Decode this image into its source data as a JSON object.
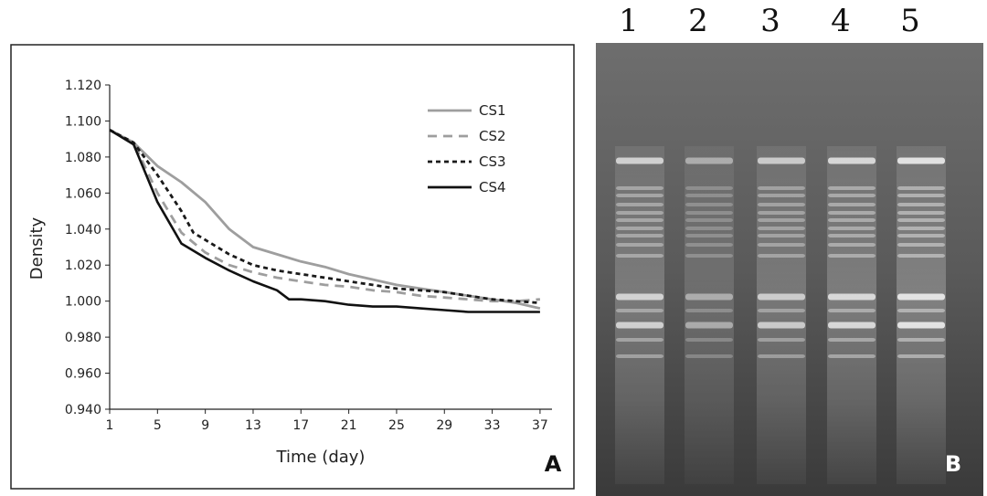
{
  "chart_data": {
    "type": "line",
    "xlabel": "Time (day)",
    "ylabel": "Density",
    "xlim": [
      1,
      38
    ],
    "ylim": [
      0.94,
      1.12
    ],
    "x_ticks": [
      "1",
      "5",
      "9",
      "13",
      "17",
      "21",
      "25",
      "29",
      "33",
      "37"
    ],
    "y_ticks": [
      "0.940",
      "0.960",
      "0.980",
      "1.000",
      "1.020",
      "1.040",
      "1.060",
      "1.080",
      "1.100",
      "1.120"
    ],
    "grid": false,
    "legend_position": "top-right",
    "series": [
      {
        "name": "CS1",
        "color": "#9e9e9e",
        "dash": "solid",
        "x": [
          1,
          3,
          5,
          7,
          9,
          11,
          13,
          15,
          17,
          19,
          21,
          23,
          25,
          27,
          29,
          31,
          33,
          35,
          37
        ],
        "y": [
          1.095,
          1.088,
          1.075,
          1.066,
          1.055,
          1.04,
          1.03,
          1.026,
          1.022,
          1.019,
          1.015,
          1.012,
          1.009,
          1.007,
          1.005,
          1.003,
          1.001,
          0.999,
          0.996
        ]
      },
      {
        "name": "CS2",
        "color": "#9e9e9e",
        "dash": "dashed",
        "x": [
          1,
          3,
          5,
          7,
          9,
          11,
          13,
          15,
          17,
          19,
          21,
          23,
          25,
          27,
          29,
          31,
          33,
          35,
          37
        ],
        "y": [
          1.095,
          1.088,
          1.06,
          1.038,
          1.027,
          1.02,
          1.016,
          1.013,
          1.011,
          1.009,
          1.008,
          1.006,
          1.005,
          1.003,
          1.002,
          1.001,
          1.0,
          1.0,
          1.001
        ]
      },
      {
        "name": "CS3",
        "color": "#1a1a1a",
        "dash": "dotted",
        "x": [
          1,
          3,
          5,
          7,
          8,
          9,
          11,
          13,
          15,
          17,
          19,
          21,
          23,
          25,
          27,
          29,
          31,
          33,
          35,
          37
        ],
        "y": [
          1.095,
          1.088,
          1.07,
          1.05,
          1.038,
          1.034,
          1.026,
          1.02,
          1.017,
          1.015,
          1.013,
          1.011,
          1.009,
          1.007,
          1.006,
          1.005,
          1.003,
          1.001,
          1.0,
          0.999
        ]
      },
      {
        "name": "CS4",
        "color": "#111111",
        "dash": "solid",
        "x": [
          1,
          3,
          5,
          7,
          9,
          11,
          13,
          15,
          16,
          17,
          19,
          21,
          23,
          25,
          27,
          29,
          31,
          33,
          35,
          37
        ],
        "y": [
          1.095,
          1.087,
          1.055,
          1.032,
          1.024,
          1.017,
          1.011,
          1.006,
          1.001,
          1.001,
          1.0,
          0.998,
          0.997,
          0.997,
          0.996,
          0.995,
          0.994,
          0.994,
          0.994,
          0.994
        ]
      }
    ],
    "panel_label": "A"
  },
  "gel": {
    "lane_labels": [
      "1",
      "2",
      "3",
      "4",
      "5"
    ],
    "panel_label": "B",
    "lane_intensity": [
      0.85,
      0.55,
      0.8,
      0.9,
      1.0
    ]
  }
}
